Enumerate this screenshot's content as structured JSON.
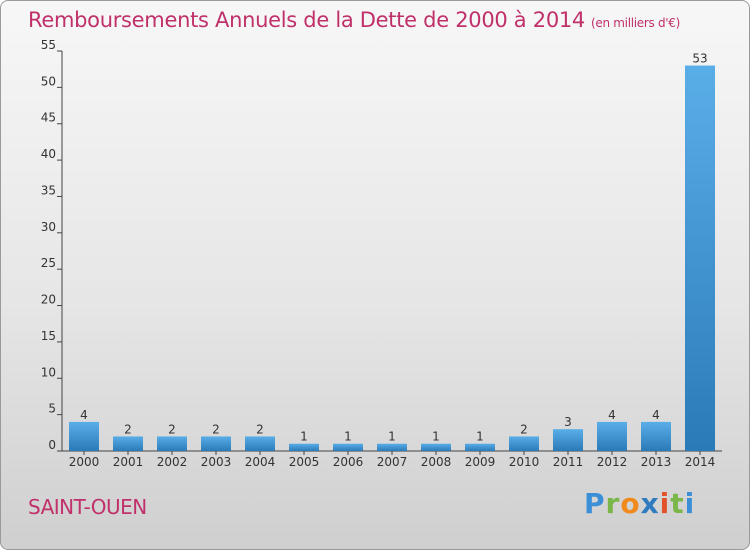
{
  "header": {
    "title": "Remboursements Annuels de la Dette de 2000 à 2014",
    "unit": "(en milliers d'€)"
  },
  "footer": {
    "city": "SAINT-OUEN",
    "brand": "Proxiti"
  },
  "colors": {
    "title": "#c0306a",
    "bar_top": "#5aaee8",
    "bar_bottom": "#2a7ab8"
  },
  "chart_data": {
    "type": "bar",
    "title": "Remboursements Annuels de la Dette de 2000 à 2014",
    "xlabel": "",
    "ylabel": "",
    "categories": [
      "2000",
      "2001",
      "2002",
      "2003",
      "2004",
      "2005",
      "2006",
      "2007",
      "2008",
      "2009",
      "2010",
      "2011",
      "2012",
      "2013",
      "2014"
    ],
    "values": [
      4,
      2,
      2,
      2,
      2,
      1,
      1,
      1,
      1,
      1,
      2,
      3,
      4,
      4,
      53
    ],
    "ylim": [
      0,
      55
    ],
    "yticks": [
      0,
      5,
      10,
      15,
      20,
      25,
      30,
      35,
      40,
      45,
      50,
      55
    ],
    "grid": false,
    "legend": "none"
  }
}
